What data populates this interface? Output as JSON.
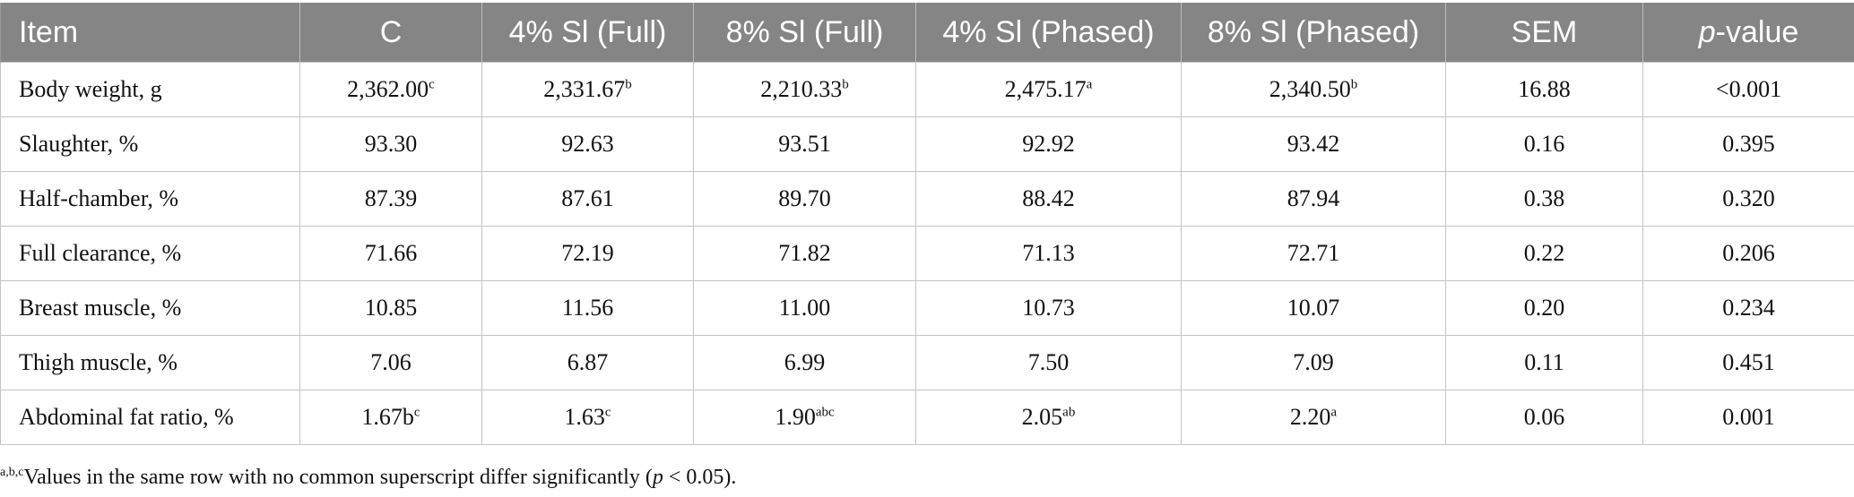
{
  "table": {
    "headers": [
      "Item",
      "C",
      "4% Sl (Full)",
      "8% Sl (Full)",
      "4% Sl (Phased)",
      "8% Sl (Phased)",
      "SEM"
    ],
    "pvalue_header_italic": "p",
    "pvalue_header_rest": "-value",
    "rows": [
      {
        "item": "Body weight, g",
        "cells": [
          {
            "v": "2,362.00",
            "s": "c"
          },
          {
            "v": "2,331.67",
            "s": "b"
          },
          {
            "v": "2,210.33",
            "s": "b"
          },
          {
            "v": "2,475.17",
            "s": "a"
          },
          {
            "v": "2,340.50",
            "s": "b"
          }
        ],
        "sem": "16.88",
        "p": "<0.001"
      },
      {
        "item": "Slaughter, %",
        "cells": [
          {
            "v": "93.30",
            "s": ""
          },
          {
            "v": "92.63",
            "s": ""
          },
          {
            "v": "93.51",
            "s": ""
          },
          {
            "v": "92.92",
            "s": ""
          },
          {
            "v": "93.42",
            "s": ""
          }
        ],
        "sem": "0.16",
        "p": "0.395"
      },
      {
        "item": "Half-chamber, %",
        "cells": [
          {
            "v": "87.39",
            "s": ""
          },
          {
            "v": "87.61",
            "s": ""
          },
          {
            "v": "89.70",
            "s": ""
          },
          {
            "v": "88.42",
            "s": ""
          },
          {
            "v": "87.94",
            "s": ""
          }
        ],
        "sem": "0.38",
        "p": "0.320"
      },
      {
        "item": "Full clearance, %",
        "cells": [
          {
            "v": "71.66",
            "s": ""
          },
          {
            "v": "72.19",
            "s": ""
          },
          {
            "v": "71.82",
            "s": ""
          },
          {
            "v": "71.13",
            "s": ""
          },
          {
            "v": "72.71",
            "s": ""
          }
        ],
        "sem": "0.22",
        "p": "0.206"
      },
      {
        "item": "Breast muscle, %",
        "cells": [
          {
            "v": "10.85",
            "s": ""
          },
          {
            "v": "11.56",
            "s": ""
          },
          {
            "v": "11.00",
            "s": ""
          },
          {
            "v": "10.73",
            "s": ""
          },
          {
            "v": "10.07",
            "s": ""
          }
        ],
        "sem": "0.20",
        "p": "0.234"
      },
      {
        "item": "Thigh muscle, %",
        "cells": [
          {
            "v": "7.06",
            "s": ""
          },
          {
            "v": "6.87",
            "s": ""
          },
          {
            "v": "6.99",
            "s": ""
          },
          {
            "v": "7.50",
            "s": ""
          },
          {
            "v": "7.09",
            "s": ""
          }
        ],
        "sem": "0.11",
        "p": "0.451"
      },
      {
        "item": "Abdominal fat ratio, %",
        "cells": [
          {
            "v": "1.67b",
            "s": "c"
          },
          {
            "v": "1.63",
            "s": "c"
          },
          {
            "v": "1.90",
            "s": "abc"
          },
          {
            "v": "2.05",
            "s": "ab"
          },
          {
            "v": "2.20",
            "s": "a"
          }
        ],
        "sem": "0.06",
        "p": "0.001"
      }
    ]
  },
  "footnote": {
    "sup": "a,b,c",
    "text_before": "Values in the same row with no common superscript differ significantly (",
    "italic": "p",
    "text_after": " < 0.05)."
  }
}
